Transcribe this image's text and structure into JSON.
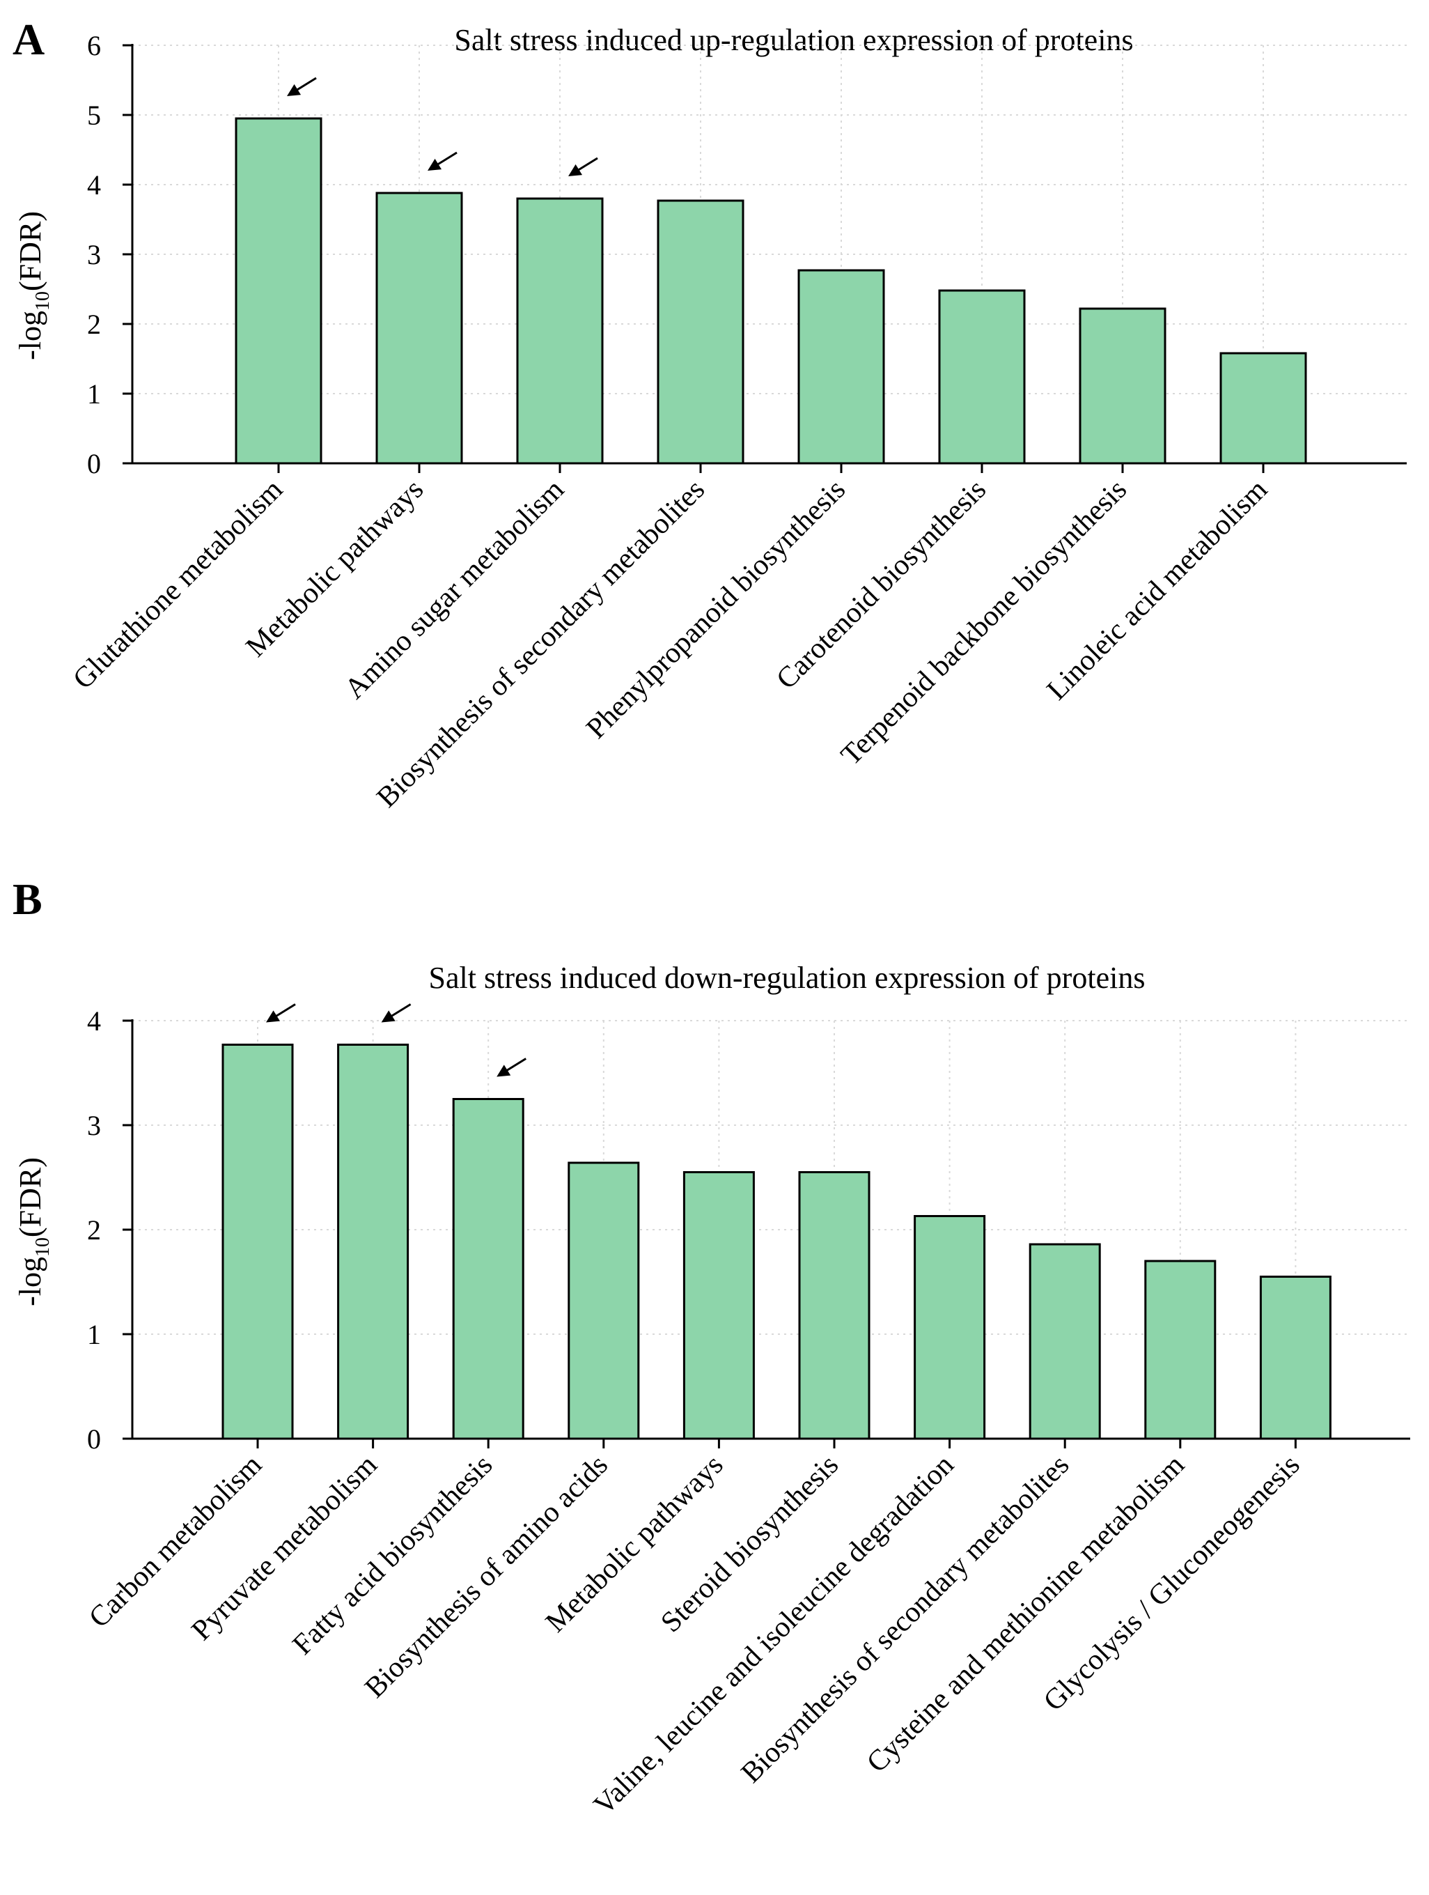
{
  "chart_data": [
    {
      "type": "bar",
      "panel_label": "A",
      "title": "Salt stress induced up-regulation expression of proteins",
      "ylabel": "-log10(FDR)",
      "ylabel_main": "-log",
      "ylabel_sub": "10",
      "ylabel_tail": "(FDR)",
      "ylim": [
        0,
        6
      ],
      "yticks": [
        "0",
        "1",
        "2",
        "3",
        "4",
        "5",
        "6"
      ],
      "grid": true,
      "categories": [
        "Glutathione metabolism",
        "Metabolic pathways",
        "Amino sugar metabolism",
        "Biosynthesis of secondary metabolites",
        "Phenylpropanoid biosynthesis",
        "Carotenoid biosynthesis",
        "Terpenoid backbone biosynthesis",
        "Linoleic acid metabolism"
      ],
      "values": [
        4.95,
        3.88,
        3.8,
        3.77,
        2.77,
        2.48,
        2.22,
        1.58
      ],
      "arrows_on": [
        0,
        1,
        2
      ],
      "bar_color": "#8dd5aa"
    },
    {
      "type": "bar",
      "panel_label": "B",
      "title": "Salt stress induced down-regulation expression of proteins",
      "ylabel": "-log10(FDR)",
      "ylabel_main": "-log",
      "ylabel_sub": "10",
      "ylabel_tail": "(FDR)",
      "ylim": [
        0,
        4
      ],
      "yticks": [
        "0",
        "1",
        "2",
        "3",
        "4"
      ],
      "grid": true,
      "categories": [
        "Carbon metabolism",
        "Pyruvate metabolism",
        "Fatty acid biosynthesis",
        "Biosynthesis of amino acids",
        "Metabolic pathways",
        "Steroid biosynthesis",
        "Valine, leucine and isoleucine degradation",
        "Biosynthesis of secondary metabolites",
        "Cysteine and methionine metabolism",
        "Glycolysis / Gluconeogenesis"
      ],
      "values": [
        3.77,
        3.77,
        3.25,
        2.64,
        2.55,
        2.55,
        2.13,
        1.86,
        1.7,
        1.55
      ],
      "arrows_on": [
        0,
        1,
        2
      ],
      "bar_color": "#8dd5aa"
    }
  ]
}
